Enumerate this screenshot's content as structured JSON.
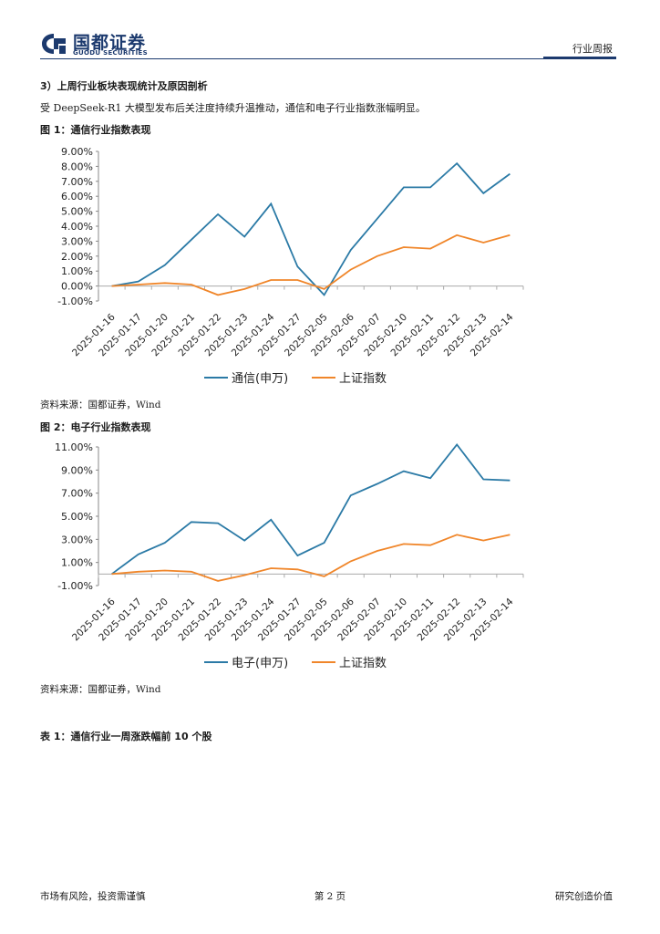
{
  "header": {
    "logo_cn": "国都证券",
    "logo_en": "GUODU SECURITIES",
    "report_type": "行业周报"
  },
  "section": {
    "title": "3）上周行业板块表现统计及原因剖析",
    "body": "受 DeepSeek-R1 大模型发布后关注度持续升温推动，通信和电子行业指数涨幅明显。"
  },
  "figure1": {
    "title": "图 1：通信行业指数表现",
    "source": "资料来源：国都证券，Wind"
  },
  "figure2": {
    "title": "图 2：电子行业指数表现",
    "source": "资料来源：国都证券，Wind"
  },
  "table1": {
    "title": "表 1：通信行业一周涨跌幅前 10 个股"
  },
  "footer": {
    "left": "市场有风险，投资需谨慎",
    "center": "第 2 页",
    "right": "研究创造价值"
  },
  "colors": {
    "series_blue": "#2b7aa6",
    "series_orange": "#f0862a",
    "brand": "#1c3a6e"
  },
  "chart_data": [
    {
      "type": "line",
      "categories": [
        "2025-01-16",
        "2025-01-17",
        "2025-01-20",
        "2025-01-21",
        "2025-01-22",
        "2025-01-23",
        "2025-01-24",
        "2025-01-27",
        "2025-02-05",
        "2025-02-06",
        "2025-02-07",
        "2025-02-10",
        "2025-02-11",
        "2025-02-12",
        "2025-02-13",
        "2025-02-14"
      ],
      "series": [
        {
          "name": "通信(申万)",
          "color": "#2b7aa6",
          "values": [
            0.0,
            0.3,
            1.4,
            3.1,
            4.8,
            3.3,
            5.5,
            1.3,
            -0.6,
            2.4,
            4.5,
            6.6,
            6.6,
            8.2,
            6.2,
            7.5
          ]
        },
        {
          "name": "上证指数",
          "color": "#f0862a",
          "values": [
            0.0,
            0.1,
            0.2,
            0.1,
            -0.6,
            -0.2,
            0.4,
            0.4,
            -0.2,
            1.1,
            2.0,
            2.6,
            2.5,
            3.4,
            2.9,
            3.4
          ]
        }
      ],
      "yticks": [
        "9.00%",
        "8.00%",
        "7.00%",
        "6.00%",
        "5.00%",
        "4.00%",
        "3.00%",
        "2.00%",
        "1.00%",
        "0.00%",
        "-1.00%"
      ],
      "ylim": [
        -1,
        9
      ],
      "legend": "bottom",
      "grid": false
    },
    {
      "type": "line",
      "categories": [
        "2025-01-16",
        "2025-01-17",
        "2025-01-20",
        "2025-01-21",
        "2025-01-22",
        "2025-01-23",
        "2025-01-24",
        "2025-01-27",
        "2025-02-05",
        "2025-02-06",
        "2025-02-07",
        "2025-02-10",
        "2025-02-11",
        "2025-02-12",
        "2025-02-13",
        "2025-02-14"
      ],
      "series": [
        {
          "name": "电子(申万)",
          "color": "#2b7aa6",
          "values": [
            0.0,
            1.7,
            2.7,
            4.5,
            4.4,
            2.9,
            4.7,
            1.6,
            2.7,
            6.8,
            7.8,
            8.9,
            8.3,
            11.2,
            8.2,
            8.1
          ]
        },
        {
          "name": "上证指数",
          "color": "#f0862a",
          "values": [
            0.0,
            0.2,
            0.3,
            0.2,
            -0.6,
            -0.1,
            0.5,
            0.4,
            -0.2,
            1.1,
            2.0,
            2.6,
            2.5,
            3.4,
            2.9,
            3.4
          ]
        }
      ],
      "yticks": [
        "11.00%",
        "9.00%",
        "7.00%",
        "5.00%",
        "3.00%",
        "1.00%",
        "-1.00%"
      ],
      "ylim": [
        -1,
        11
      ],
      "legend": "bottom",
      "grid": false
    }
  ]
}
